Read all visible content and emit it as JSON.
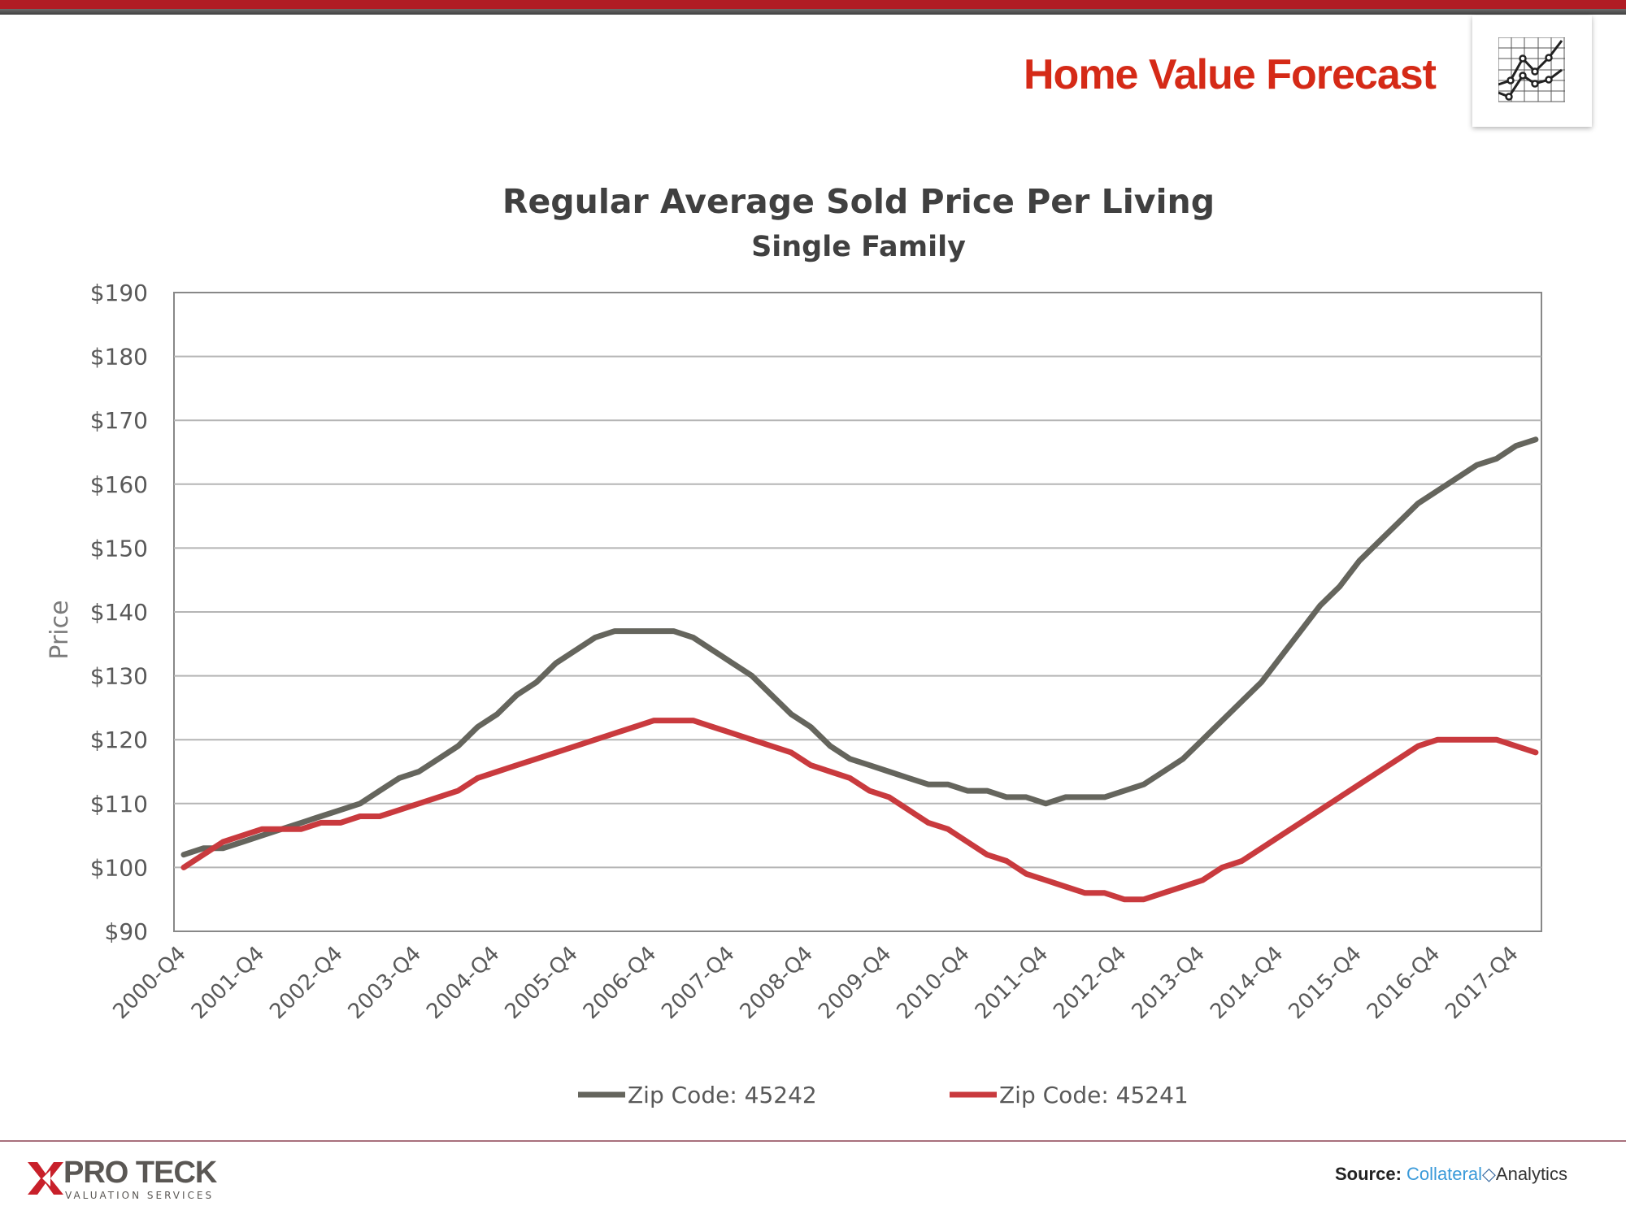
{
  "header": {
    "title": "Home Value Forecast",
    "icon": "line-chart-icon"
  },
  "colors": {
    "accent": "#b01c24",
    "title": "#d52a17",
    "series_gray": "#65655d",
    "series_red": "#c93a3e"
  },
  "chart_data": {
    "type": "line",
    "title": "Regular Average Sold Price Per Living",
    "subtitle": "Single Family",
    "ylabel": "Price",
    "xlabel": "",
    "ylim": [
      90,
      190
    ],
    "yticks": [
      "$90",
      "$100",
      "$110",
      "$120",
      "$130",
      "$140",
      "$150",
      "$160",
      "$170",
      "$180",
      "$190"
    ],
    "xticks": [
      "2000-Q4",
      "2001-Q4",
      "2002-Q4",
      "2003-Q4",
      "2004-Q4",
      "2005-Q4",
      "2006-Q4",
      "2007-Q4",
      "2008-Q4",
      "2009-Q4",
      "2010-Q4",
      "2011-Q4",
      "2012-Q4",
      "2013-Q4",
      "2014-Q4",
      "2015-Q4",
      "2016-Q4",
      "2017-Q4"
    ],
    "x_start": "2000-Q4",
    "x_step": "quarter",
    "grid": true,
    "legend": "bottom",
    "series": [
      {
        "name": "Zip Code: 45242",
        "color": "#65655d",
        "values": [
          102,
          103,
          103,
          104,
          105,
          106,
          107,
          108,
          109,
          110,
          112,
          114,
          115,
          117,
          119,
          122,
          124,
          127,
          129,
          132,
          134,
          136,
          137,
          137,
          137,
          137,
          136,
          134,
          132,
          130,
          127,
          124,
          122,
          119,
          117,
          116,
          115,
          114,
          113,
          113,
          112,
          112,
          111,
          111,
          110,
          111,
          111,
          111,
          112,
          113,
          115,
          117,
          120,
          123,
          126,
          129,
          133,
          137,
          141,
          144,
          148,
          151,
          154,
          157,
          159,
          161,
          163,
          164,
          166,
          167
        ]
      },
      {
        "name": "Zip Code: 45241",
        "color": "#c93a3e",
        "values": [
          100,
          102,
          104,
          105,
          106,
          106,
          106,
          107,
          107,
          108,
          108,
          109,
          110,
          111,
          112,
          114,
          115,
          116,
          117,
          118,
          119,
          120,
          121,
          122,
          123,
          123,
          123,
          122,
          121,
          120,
          119,
          118,
          116,
          115,
          114,
          112,
          111,
          109,
          107,
          106,
          104,
          102,
          101,
          99,
          98,
          97,
          96,
          96,
          95,
          95,
          96,
          97,
          98,
          100,
          101,
          103,
          105,
          107,
          109,
          111,
          113,
          115,
          117,
          119,
          120,
          120,
          120,
          120,
          119,
          118
        ]
      }
    ]
  },
  "footer": {
    "logo_text": "PRO TECK",
    "logo_sub": "VALUATION SERVICES",
    "source_label": "Source:",
    "source_name_a": "Collateral",
    "source_name_b": "Analytics"
  }
}
